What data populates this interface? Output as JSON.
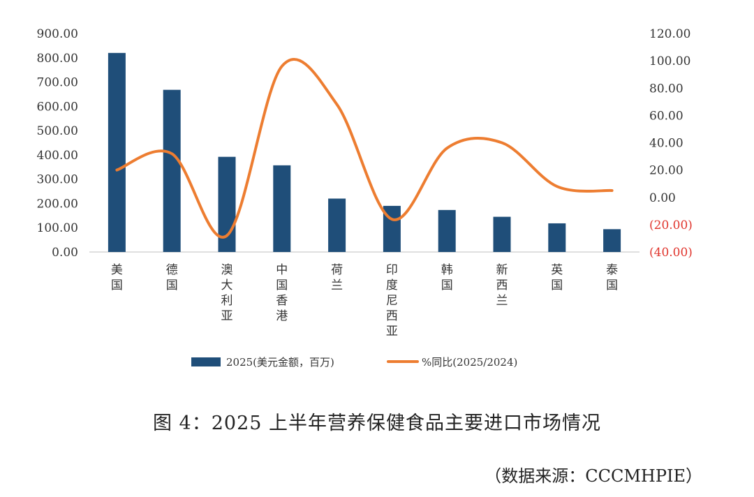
{
  "chart_data": {
    "type": "bar+line",
    "categories": [
      "美国",
      "德国",
      "澳大利亚",
      "中国香港",
      "荷兰",
      "印度尼西亚",
      "韩国",
      "新西兰",
      "英国",
      "泰国"
    ],
    "series": [
      {
        "name": "2025(美元金额，百万)",
        "type": "bar",
        "axis": "left",
        "values": [
          820,
          668,
          392,
          357,
          220,
          190,
          173,
          145,
          118,
          94
        ],
        "color": "#1f4e79"
      },
      {
        "name": "%同比(2025/2024)",
        "type": "line",
        "axis": "right",
        "smooth": true,
        "values": [
          20,
          32,
          -28,
          96,
          68,
          -16,
          36,
          40,
          8,
          5
        ],
        "color": "#ed7d31"
      }
    ],
    "y_left": {
      "min": 0,
      "max": 900,
      "ticks": [
        "900.00",
        "800.00",
        "700.00",
        "600.00",
        "500.00",
        "400.00",
        "300.00",
        "200.00",
        "100.00",
        "0.00"
      ]
    },
    "y_right": {
      "min": -40,
      "max": 120,
      "ticks": [
        "120.00",
        "100.00",
        "80.00",
        "60.00",
        "40.00",
        "20.00",
        "0.00",
        "(20.00)",
        "(40.00)"
      ],
      "negative_color": "#e0342c"
    },
    "legend_position": "bottom",
    "grid": false
  },
  "caption": "图 4：2025 上半年营养保健食品主要进口市场情况",
  "source": "（数据来源：CCCMHPIE）"
}
